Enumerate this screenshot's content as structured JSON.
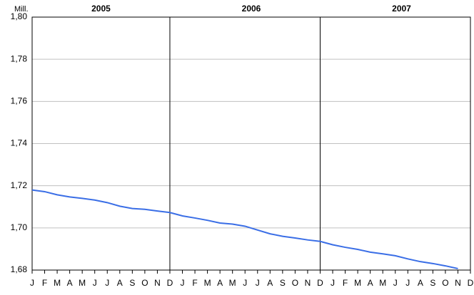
{
  "chart_data": {
    "type": "line",
    "y_label": "Mill.",
    "year_labels": [
      "2005",
      "2006",
      "2007"
    ],
    "categories": [
      "J",
      "F",
      "M",
      "A",
      "M",
      "J",
      "J",
      "A",
      "S",
      "O",
      "N",
      "D",
      "J",
      "F",
      "M",
      "A",
      "M",
      "J",
      "J",
      "A",
      "S",
      "O",
      "N",
      "D",
      "J",
      "F",
      "M",
      "A",
      "M",
      "J",
      "J",
      "A",
      "S",
      "O",
      "N",
      "D"
    ],
    "series": [
      {
        "color": "#3a6ee6",
        "values": [
          1.718,
          1.7172,
          1.7157,
          1.7147,
          1.714,
          1.7132,
          1.712,
          1.7103,
          1.7092,
          1.7088,
          1.708,
          1.7073,
          1.7057,
          1.7047,
          1.7036,
          1.7023,
          1.7018,
          1.7008,
          1.699,
          1.6972,
          1.696,
          1.6952,
          1.6943,
          1.6936,
          1.692,
          1.6908,
          1.6898,
          1.6885,
          1.6877,
          1.6868,
          1.6853,
          1.684,
          1.6831,
          1.682,
          1.6807,
          null
        ]
      }
    ],
    "ylim": [
      1.68,
      1.8
    ],
    "yticks": [
      {
        "value": 1.68,
        "label": "1,68"
      },
      {
        "value": 1.7,
        "label": "1,70"
      },
      {
        "value": 1.72,
        "label": "1,72"
      },
      {
        "value": 1.74,
        "label": "1,74"
      },
      {
        "value": 1.76,
        "label": "1,76"
      },
      {
        "value": 1.78,
        "label": "1,78"
      },
      {
        "value": 1.8,
        "label": "1,80"
      }
    ],
    "grid": true
  }
}
